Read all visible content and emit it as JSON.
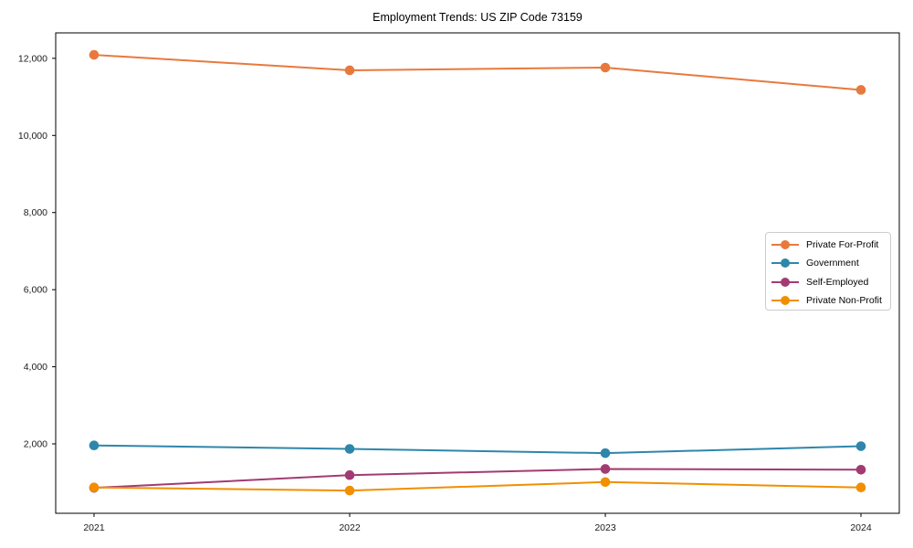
{
  "chart_data": {
    "type": "line",
    "title": "Employment Trends: US ZIP Code 73159",
    "x": [
      2021,
      2022,
      2023,
      2024
    ],
    "xtick_labels": [
      "2021",
      "2022",
      "2023",
      "2024"
    ],
    "series": [
      {
        "name": "Private For-Profit",
        "color": "#E8793D",
        "values": [
          12090,
          11690,
          11760,
          11180
        ]
      },
      {
        "name": "Government",
        "color": "#2E86AB",
        "values": [
          1960,
          1870,
          1760,
          1940
        ]
      },
      {
        "name": "Self-Employed",
        "color": "#A23B72",
        "values": [
          860,
          1190,
          1350,
          1330
        ]
      },
      {
        "name": "Private Non-Profit",
        "color": "#F18F01",
        "values": [
          870,
          790,
          1010,
          870
        ]
      }
    ],
    "yticks": [
      2000,
      4000,
      6000,
      8000,
      10000,
      12000
    ],
    "ytick_labels": [
      "2,000",
      "4,000",
      "6,000",
      "8,000",
      "10,000",
      "12,000"
    ],
    "xlim": [
      2020.85,
      2024.15
    ],
    "ylim": [
      200,
      12660
    ],
    "grid": false,
    "legend_position": "center-right",
    "axis_color": "#000000",
    "tick_label_color": "#1a1a1a"
  }
}
